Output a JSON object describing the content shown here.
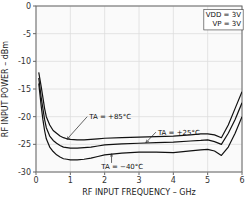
{
  "chart_data": {
    "type": "line",
    "x_label": "RF INPUT FREQUENCY – GHz",
    "y_label": "RF INPUT POWER – dBm",
    "xlim": [
      0,
      6
    ],
    "ylim": [
      -30,
      0
    ],
    "xticks": [
      0,
      1,
      2,
      3,
      4,
      5,
      6
    ],
    "yticks": [
      0,
      -5,
      -10,
      -15,
      -20,
      -25,
      -30
    ],
    "grid": true,
    "x": [
      0.08,
      0.15,
      0.2,
      0.25,
      0.3,
      0.4,
      0.5,
      0.6,
      0.7,
      0.8,
      0.9,
      1.0,
      1.2,
      1.4,
      1.6,
      1.8,
      2.0,
      2.5,
      3.0,
      3.5,
      4.0,
      4.5,
      4.8,
      5.0,
      5.2,
      5.4,
      5.6,
      5.8,
      6.0
    ],
    "series": [
      {
        "color": "#111111",
        "values": [
          -12.0,
          -14.5,
          -16.5,
          -18.5,
          -20.0,
          -21.5,
          -22.5,
          -23.0,
          -23.5,
          -23.8,
          -24.0,
          -24.1,
          -24.2,
          -24.2,
          -24.1,
          -24.0,
          -23.9,
          -23.8,
          -23.7,
          -23.6,
          -23.5,
          -23.3,
          -23.1,
          -23.1,
          -23.3,
          -23.8,
          -21.5,
          -18.5,
          -15.5
        ]
      },
      {
        "color": "#111111",
        "values": [
          -13.0,
          -16.5,
          -18.5,
          -20.5,
          -22.0,
          -23.5,
          -24.3,
          -24.8,
          -25.2,
          -25.5,
          -25.6,
          -25.7,
          -25.7,
          -25.6,
          -25.5,
          -25.3,
          -25.1,
          -24.9,
          -24.8,
          -24.7,
          -24.6,
          -24.4,
          -24.3,
          -24.2,
          -24.5,
          -25.0,
          -23.0,
          -20.5,
          -17.5
        ]
      },
      {
        "color": "#111111",
        "values": [
          -14.0,
          -18.0,
          -20.5,
          -22.5,
          -24.0,
          -25.5,
          -26.3,
          -26.9,
          -27.3,
          -27.6,
          -27.7,
          -27.8,
          -27.8,
          -27.7,
          -27.5,
          -27.2,
          -26.9,
          -26.6,
          -26.4,
          -26.4,
          -26.5,
          -26.2,
          -26.0,
          -25.9,
          -26.2,
          -27.0,
          -25.5,
          -23.0,
          -20.0
        ]
      }
    ],
    "annotations": [
      {
        "text": "TA = +85°C",
        "x": 1.55,
        "y": -20.0,
        "arrow_x": 0.9,
        "arrow_y": -24.1
      },
      {
        "text": "TA = +25°C",
        "x": 3.55,
        "y": -22.8,
        "arrow_x": 3.2,
        "arrow_y": -24.7
      },
      {
        "text": "TA = −40°C",
        "x": 1.9,
        "y": -29.0,
        "arrow_x": 2.2,
        "arrow_y": -26.7
      },
      {
        "text": "VDD = 3V\nVP = 3V",
        "x": 5.97,
        "y": -0.8,
        "box": true
      }
    ]
  }
}
